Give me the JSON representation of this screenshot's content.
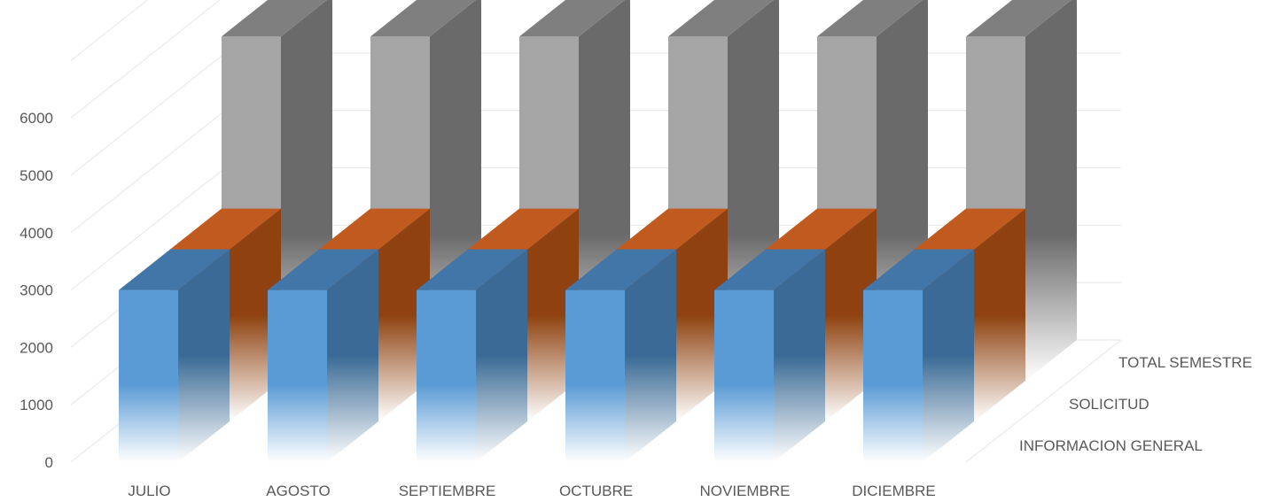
{
  "chart_data": {
    "type": "bar",
    "categories": [
      "JULIO",
      "AGOSTO",
      "SEPTIEMBRE",
      "OCTUBRE",
      "NOVIEMBRE",
      "DICIEMBRE"
    ],
    "series": [
      {
        "name": "INFORMACION GENERAL",
        "values": [
          3000,
          3000,
          3000,
          3000,
          3000,
          3000
        ],
        "color": "#5B9BD5"
      },
      {
        "name": "SOLICITUD",
        "values": [
          3000,
          3000,
          3000,
          3000,
          3000,
          3000
        ],
        "color": "#C55A11"
      },
      {
        "name": "TOTAL SEMESTRE",
        "values": [
          6000,
          6000,
          6000,
          6000,
          6000,
          6000
        ],
        "color": "#A5A5A5"
      }
    ],
    "yticks": [
      0,
      1000,
      2000,
      3000,
      4000,
      5000,
      6000
    ],
    "ylim": [
      0,
      7000
    ],
    "grid": true,
    "projection": "3d-column"
  }
}
